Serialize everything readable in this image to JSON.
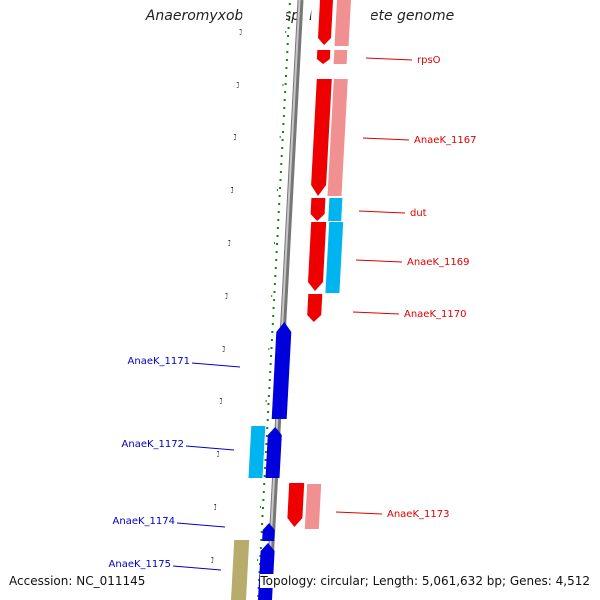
{
  "title": "Anaeromyxobacter sp. K, complete genome",
  "footer": {
    "accession": "Accession: NC_011145",
    "topology": "Topology: circular; Length: 5,061,632 bp; Genes: 4,512"
  },
  "ruler": {
    "ticks": [
      "1317 kbp",
      "1318 kbp",
      "1319 kbp",
      "1320 kbp",
      "1321 kbp",
      "1322 kbp",
      "1323 kbp",
      "1324 kbp",
      "1325 kbp",
      "1326 kbp",
      "1327 kbp"
    ]
  },
  "colors": {
    "forward_red": "#ee0000",
    "forward_pink": "#f09090",
    "reverse_blue": "#0000dd",
    "cyan": "#00b4f0",
    "olive": "#b8ac6c",
    "green_dots": "#0a8c0a",
    "label_red": "#dd0000",
    "label_blue": "#0000cc"
  },
  "gene_labels": {
    "right": [
      "rpsO",
      "AnaeK_1167",
      "dut",
      "AnaeK_1169",
      "AnaeK_1170",
      "AnaeK_1173"
    ],
    "left": [
      "AnaeK_1171",
      "AnaeK_1172",
      "AnaeK_1174",
      "AnaeK_1175"
    ]
  }
}
